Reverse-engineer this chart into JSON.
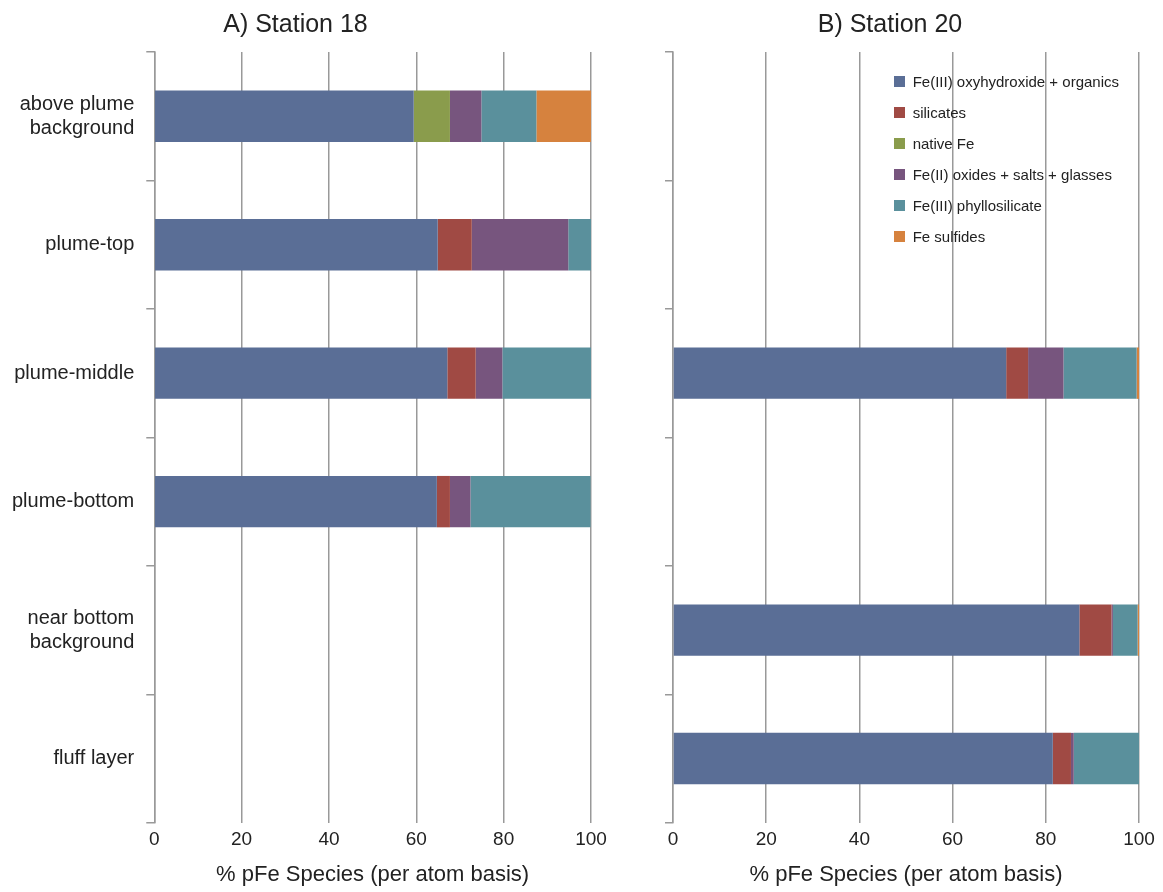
{
  "chart_data": [
    {
      "type": "bar",
      "title": "A) Station 18",
      "xlabel": "% pFe Species (per atom basis)",
      "orientation": "horizontal",
      "stacked": true,
      "grid": "x",
      "legend": false,
      "categories": [
        "above plume background",
        "plume-top",
        "plume-middle",
        "plume-bottom",
        "near bottom background",
        "fluff layer"
      ],
      "xlim": [
        0,
        100
      ],
      "xticks": [
        0,
        20,
        40,
        60,
        80,
        100
      ],
      "series": [
        {
          "color": "#5a6e96",
          "values": [
            59.4,
            64.9,
            67.1,
            64.7,
            null,
            null
          ]
        },
        {
          "color": "#a04a44",
          "values": [
            0,
            7.8,
            6.5,
            3.0,
            null,
            null
          ]
        },
        {
          "color": "#8a9c4c",
          "values": [
            8.3,
            0,
            0,
            0,
            null,
            null
          ]
        },
        {
          "color": "#77557e",
          "values": [
            7.2,
            22.1,
            6.1,
            4.7,
            null,
            null
          ]
        },
        {
          "color": "#5a909c",
          "values": [
            12.6,
            5.2,
            20.3,
            27.5,
            null,
            null
          ]
        },
        {
          "color": "#d6823e",
          "values": [
            12.5,
            0,
            0,
            null,
            null,
            null
          ]
        }
      ]
    },
    {
      "type": "bar",
      "title": "B) Station 20",
      "xlabel": "% pFe Species (per atom basis)",
      "orientation": "horizontal",
      "stacked": true,
      "grid": "x",
      "legend": "top right",
      "categories": [
        null,
        null,
        null,
        null,
        null,
        null
      ],
      "xlim": [
        0,
        100
      ],
      "xticks": [
        0,
        20,
        40,
        60,
        80,
        100
      ],
      "series": [
        {
          "name": "Fe(III) oxyhydroxide + organics",
          "color": "#5a6e96",
          "values": [
            null,
            null,
            71.5,
            null,
            87.2,
            81.5
          ]
        },
        {
          "name": "silicates",
          "color": "#a04a44",
          "values": [
            null,
            null,
            4.7,
            null,
            6.9,
            3.9
          ]
        },
        {
          "name": "native Fe",
          "color": "#8a9c4c",
          "values": [
            null,
            null,
            0,
            null,
            0,
            0
          ]
        },
        {
          "name": "Fe(II) oxides + salts + glasses",
          "color": "#77557e",
          "values": [
            null,
            null,
            7.6,
            null,
            0.3,
            0.6
          ]
        },
        {
          "name": "Fe(III) phyllosilicate",
          "color": "#5a909c",
          "values": [
            null,
            null,
            15.7,
            null,
            5.3,
            14.0
          ]
        },
        {
          "name": "Fe sulfides",
          "color": "#d6823e",
          "values": [
            null,
            null,
            0.5,
            null,
            0.3,
            0
          ]
        }
      ]
    }
  ]
}
